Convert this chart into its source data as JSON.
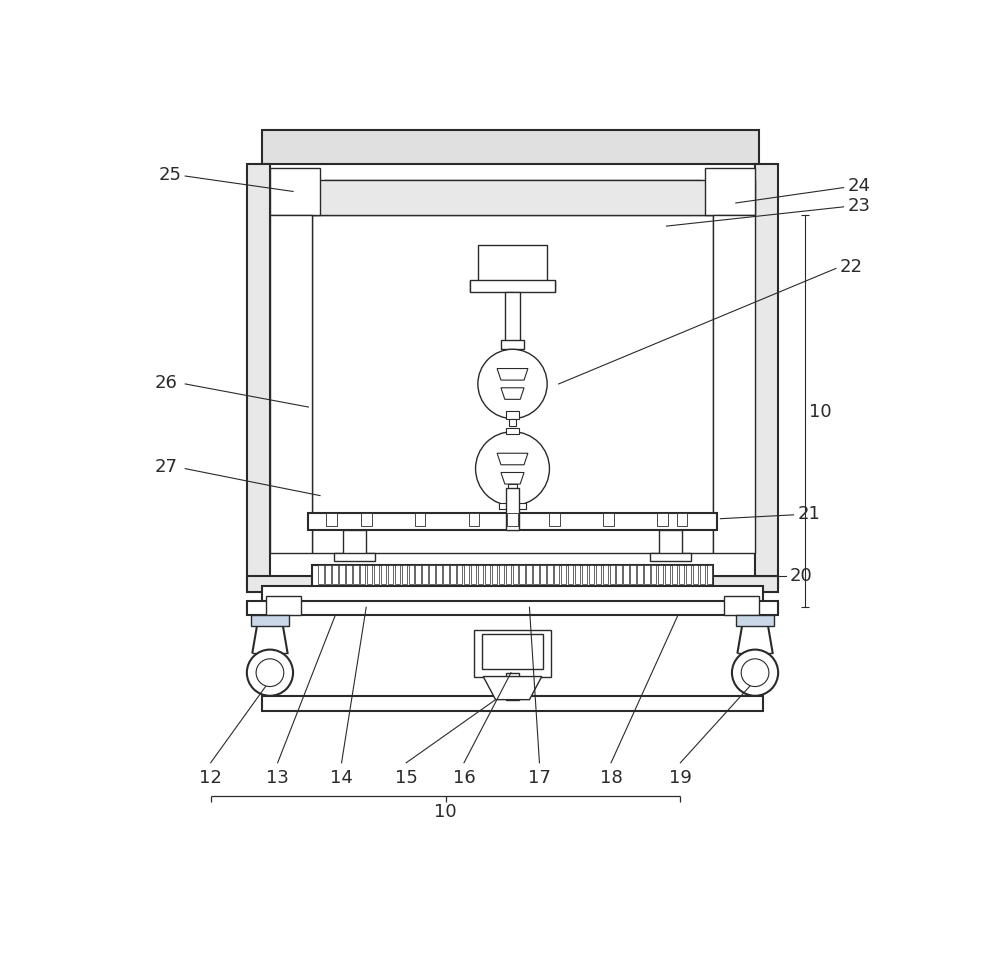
{
  "bg_color": "#ffffff",
  "lc": "#2a2a2a",
  "fig_width": 10.0,
  "fig_height": 9.62,
  "dpi": 100
}
